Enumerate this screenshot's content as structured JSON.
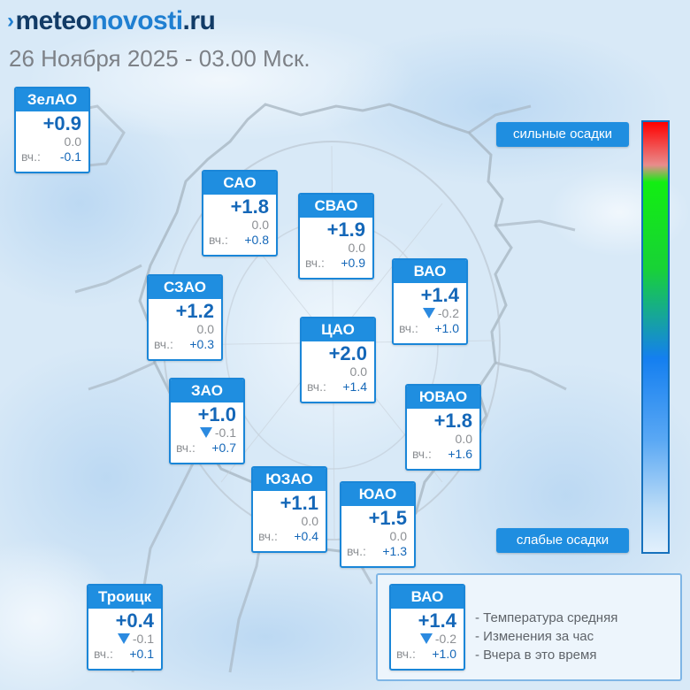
{
  "header": {
    "logo_mark": "›",
    "logo_part1": "meteo",
    "logo_part2": "novosti",
    "logo_part3": ".ru",
    "date": "26 Ноября 2025 - 03.00 Мск."
  },
  "yesterday_label": "вч.:",
  "districts": [
    {
      "name": "ЗелАО",
      "temp": "+0.9",
      "change": "0.0",
      "change_dir": "none",
      "yesterday": "-0.1"
    },
    {
      "name": "САО",
      "temp": "+1.8",
      "change": "0.0",
      "change_dir": "none",
      "yesterday": "+0.8"
    },
    {
      "name": "СВАО",
      "temp": "+1.9",
      "change": "0.0",
      "change_dir": "none",
      "yesterday": "+0.9"
    },
    {
      "name": "ВАО",
      "temp": "+1.4",
      "change": "-0.2",
      "change_dir": "down",
      "yesterday": "+1.0"
    },
    {
      "name": "СЗАО",
      "temp": "+1.2",
      "change": "0.0",
      "change_dir": "none",
      "yesterday": "+0.3"
    },
    {
      "name": "ЦАО",
      "temp": "+2.0",
      "change": "0.0",
      "change_dir": "none",
      "yesterday": "+1.4"
    },
    {
      "name": "ЗАО",
      "temp": "+1.0",
      "change": "-0.1",
      "change_dir": "down",
      "yesterday": "+0.7"
    },
    {
      "name": "ЮВАО",
      "temp": "+1.8",
      "change": "0.0",
      "change_dir": "none",
      "yesterday": "+1.6"
    },
    {
      "name": "ЮЗАО",
      "temp": "+1.1",
      "change": "0.0",
      "change_dir": "none",
      "yesterday": "+0.4"
    },
    {
      "name": "ЮАО",
      "temp": "+1.5",
      "change": "0.0",
      "change_dir": "none",
      "yesterday": "+1.3"
    },
    {
      "name": "Троицк",
      "temp": "+0.4",
      "change": "-0.1",
      "change_dir": "down",
      "yesterday": "+0.1"
    }
  ],
  "scale": {
    "top_label": "сильные осадки",
    "bottom_label": "слабые осадки",
    "colors": {
      "strong": "#ff0000",
      "medium": "#18d236",
      "light": "#147ff0",
      "weak": "#e2f0fc"
    }
  },
  "legend": {
    "sample": {
      "name": "ВАО",
      "temp": "+1.4",
      "change": "-0.2",
      "change_dir": "down",
      "yesterday": "+1.0"
    },
    "lines": [
      "- Температура средняя",
      "- Изменения за час",
      "- Вчера в это время"
    ]
  },
  "colors": {
    "accent": "#1f8ee0",
    "temp_text": "#1467b8",
    "muted_text": "#8c8f93",
    "map_water": "#d6e8f7"
  }
}
